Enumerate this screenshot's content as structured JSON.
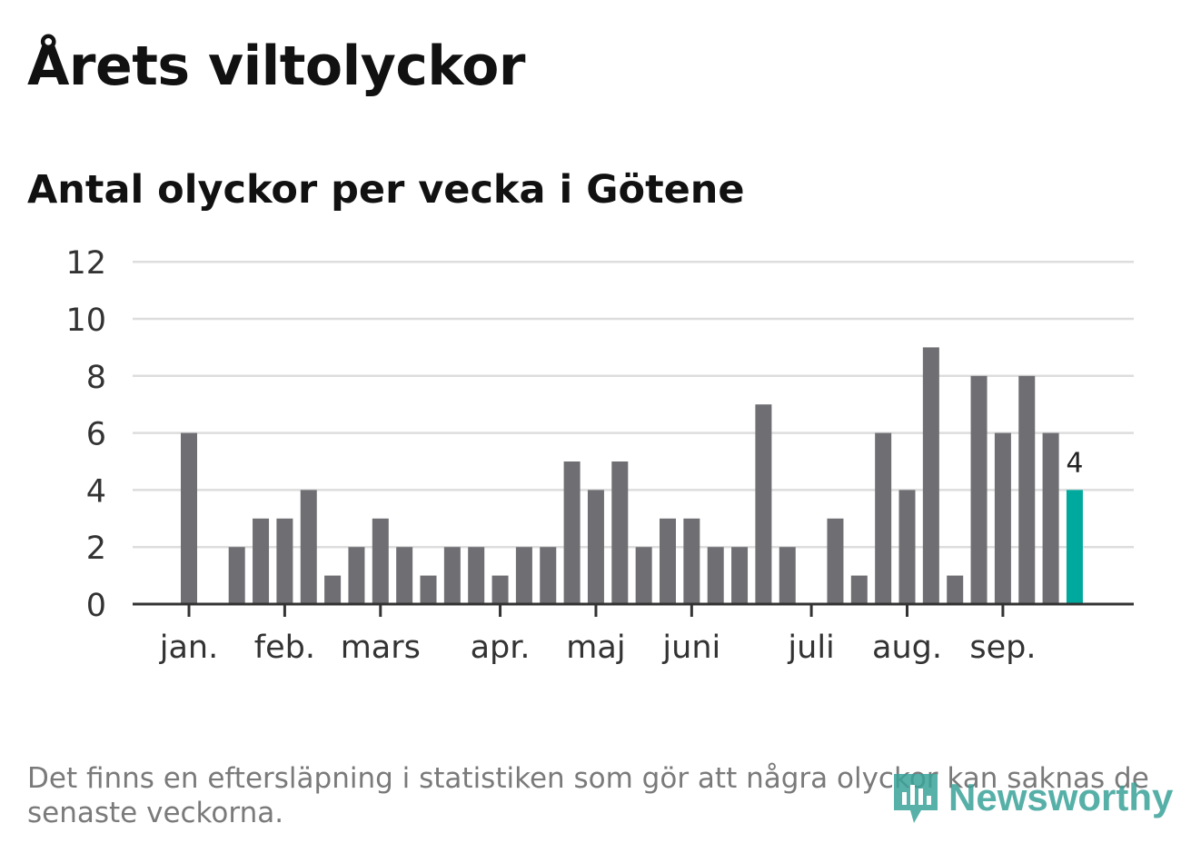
{
  "header": {
    "title": "Årets viltolyckor",
    "subtitle": "Antal olyckor per vecka i Götene"
  },
  "footer": {
    "note": "Det finns en eftersläpning i statistiken som gör att några olyckor kan saknas de senaste veckorna.",
    "logo_text": "Newsworthy"
  },
  "colors": {
    "bar": "#6f6e73",
    "highlight": "#00a99d",
    "grid": "#dddddd",
    "axis": "#333333",
    "logo": "#3aa39a"
  },
  "chart_data": {
    "type": "bar",
    "title": "Antal olyckor per vecka i Götene",
    "xlabel": "",
    "ylabel": "",
    "ylim": [
      0,
      12
    ],
    "yticks": [
      0,
      2,
      4,
      6,
      8,
      10,
      12
    ],
    "grid": true,
    "weeks": [
      1,
      2,
      3,
      4,
      5,
      6,
      7,
      8,
      9,
      10,
      11,
      12,
      13,
      14,
      15,
      16,
      17,
      18,
      19,
      20,
      21,
      22,
      23,
      24,
      25,
      26,
      27,
      28,
      29,
      30,
      31,
      32,
      33,
      34,
      35,
      36,
      37,
      38
    ],
    "values": [
      6,
      0,
      2,
      3,
      3,
      4,
      1,
      2,
      3,
      2,
      1,
      2,
      2,
      1,
      2,
      2,
      5,
      4,
      5,
      2,
      3,
      3,
      2,
      2,
      7,
      2,
      0,
      3,
      1,
      6,
      4,
      9,
      1,
      8,
      6,
      8,
      6,
      4
    ],
    "highlight_index": 37,
    "highlight_label": "4",
    "month_ticks": [
      {
        "label": "jan.",
        "week": 1
      },
      {
        "label": "feb.",
        "week": 5
      },
      {
        "label": "mars",
        "week": 9
      },
      {
        "label": "apr.",
        "week": 14
      },
      {
        "label": "maj",
        "week": 18
      },
      {
        "label": "juni",
        "week": 22
      },
      {
        "label": "juli",
        "week": 27
      },
      {
        "label": "aug.",
        "week": 31
      },
      {
        "label": "sep.",
        "week": 35
      }
    ]
  }
}
